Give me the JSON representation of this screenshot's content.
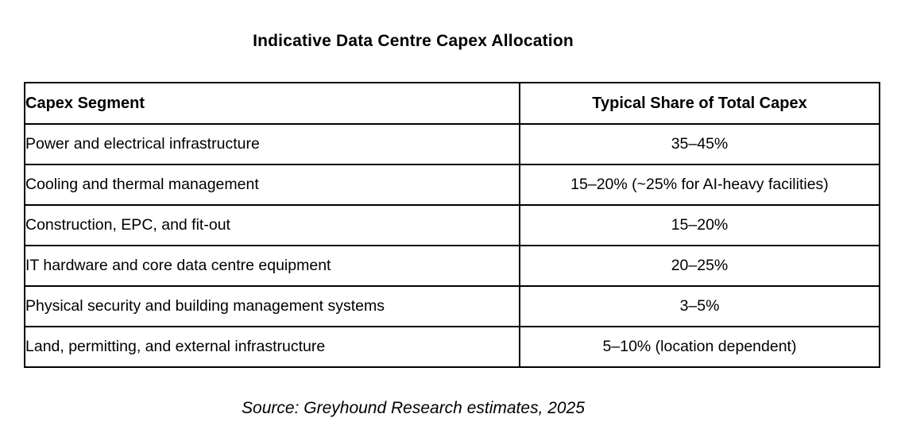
{
  "chart_data": {
    "type": "table",
    "title": "Indicative Data Centre Capex Allocation",
    "columns": [
      "Capex Segment",
      "Typical Share of Total Capex"
    ],
    "rows": [
      [
        "Power and electrical infrastructure",
        "35–45%"
      ],
      [
        "Cooling and thermal management",
        "15–20% (~25% for AI-heavy facilities)"
      ],
      [
        "Construction, EPC, and fit-out",
        "15–20%"
      ],
      [
        "IT hardware and core data centre equipment",
        "20–25%"
      ],
      [
        "Physical security and building management systems",
        "3–5%"
      ],
      [
        "Land, permitting, and external infrastructure",
        "5–10% (location dependent)"
      ]
    ],
    "source": "Source: Greyhound Research estimates, 2025",
    "layout": {
      "legend": "none",
      "grid": "full-borders",
      "column_alignment": [
        "left",
        "center"
      ]
    },
    "colors": {
      "text": "#000000",
      "border": "#000000",
      "background": "#ffffff"
    }
  }
}
